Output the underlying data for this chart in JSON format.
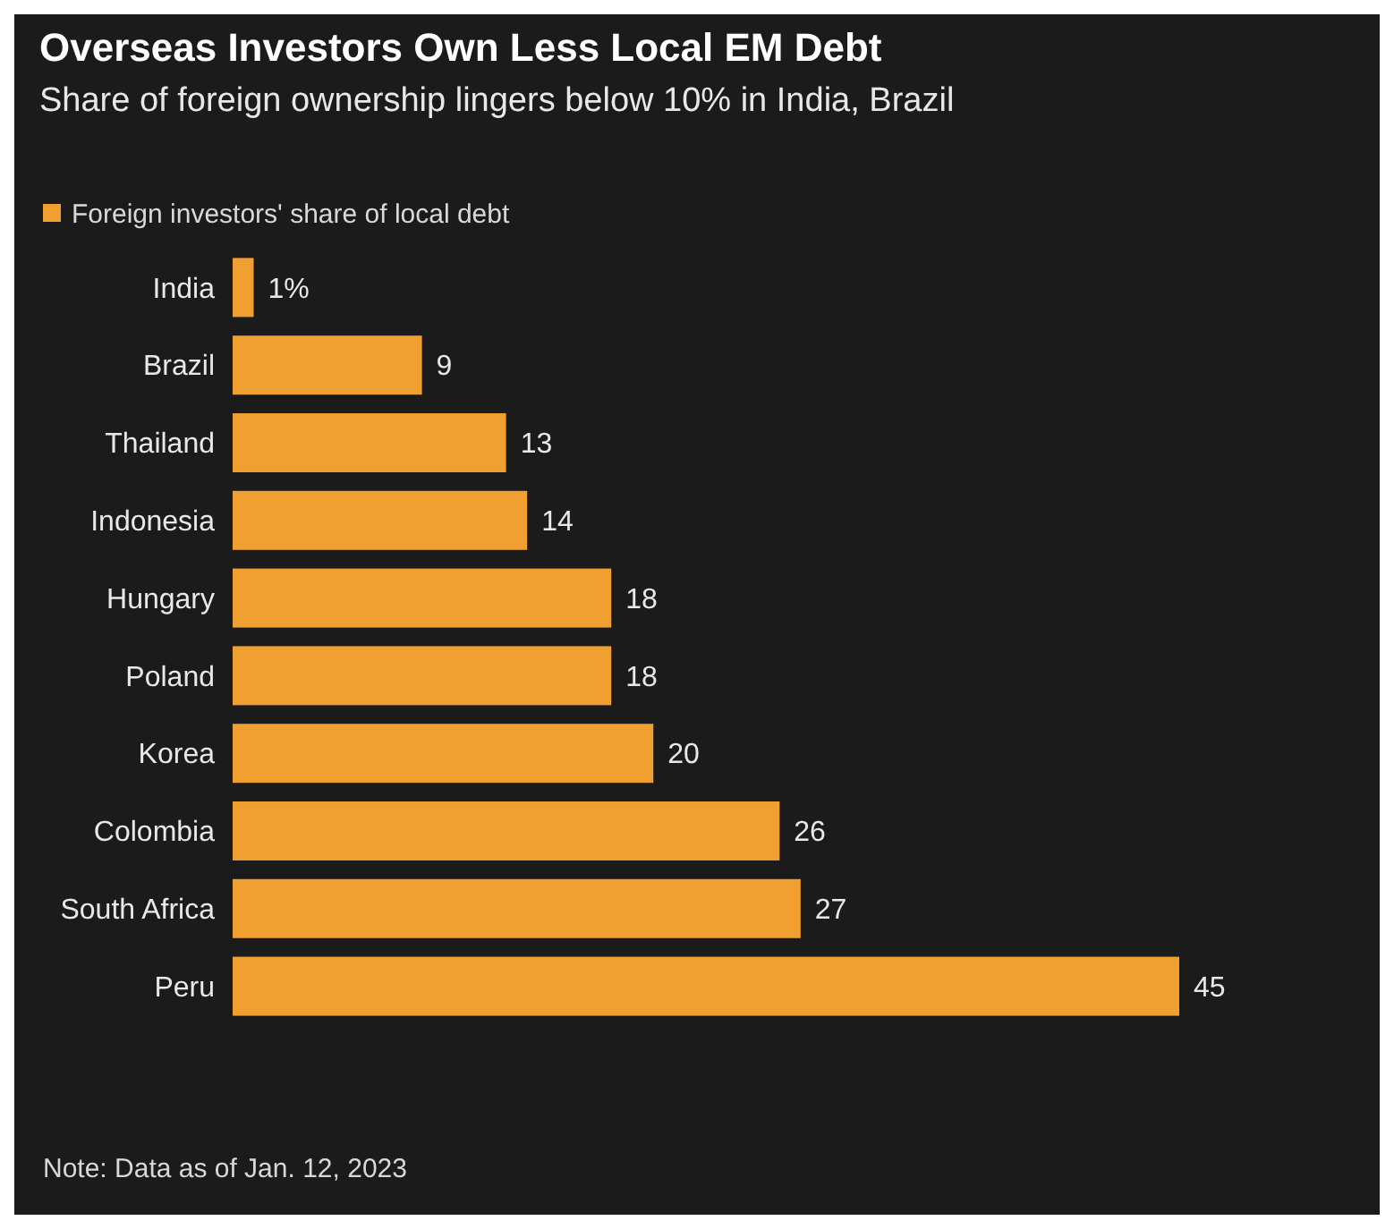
{
  "chart_data": {
    "type": "bar",
    "orientation": "horizontal",
    "title": "Overseas Investors Own Less Local EM Debt",
    "subtitle": "Share of foreign ownership lingers below 10% in India, Brazil",
    "categories": [
      "India",
      "Brazil",
      "Thailand",
      "Indonesia",
      "Hungary",
      "Poland",
      "Korea",
      "Colombia",
      "South Africa",
      "Peru"
    ],
    "series": [
      {
        "name": "Foreign investors' share of local debt",
        "color": "#f0a030",
        "values": [
          1,
          9,
          13,
          14,
          18,
          18,
          20,
          26,
          27,
          45
        ],
        "value_labels": [
          "1%",
          "9",
          "13",
          "14",
          "18",
          "18",
          "20",
          "26",
          "27",
          "45"
        ]
      }
    ],
    "legend": "top left",
    "annotations": [
      "Note: Data as of Jan. 12, 2023"
    ]
  }
}
